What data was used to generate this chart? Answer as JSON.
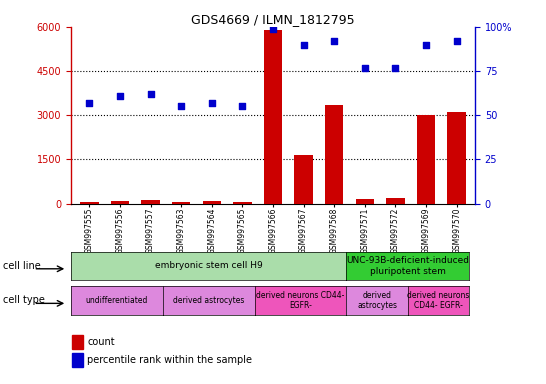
{
  "title": "GDS4669 / ILMN_1812795",
  "samples": [
    "GSM997555",
    "GSM997556",
    "GSM997557",
    "GSM997563",
    "GSM997564",
    "GSM997565",
    "GSM997566",
    "GSM997567",
    "GSM997568",
    "GSM997571",
    "GSM997572",
    "GSM997569",
    "GSM997570"
  ],
  "counts": [
    60,
    80,
    120,
    50,
    70,
    55,
    5900,
    1650,
    3350,
    150,
    200,
    3000,
    3100
  ],
  "percentiles": [
    57,
    61,
    62,
    55,
    57,
    55,
    99,
    90,
    92,
    77,
    77,
    90,
    92
  ],
  "bar_color": "#cc0000",
  "dot_color": "#0000cc",
  "ylim_left": [
    0,
    6000
  ],
  "ylim_right": [
    0,
    100
  ],
  "yticks_left": [
    0,
    1500,
    3000,
    4500,
    6000
  ],
  "yticks_right": [
    0,
    25,
    50,
    75,
    100
  ],
  "ytick_labels_right": [
    "0",
    "25",
    "50",
    "75",
    "100%"
  ],
  "grid_lines": [
    1500,
    3000,
    4500
  ],
  "cell_line_groups": [
    {
      "label": "embryonic stem cell H9",
      "start": 0,
      "end": 9,
      "color": "#aaddaa"
    },
    {
      "label": "UNC-93B-deficient-induced\npluripotent stem",
      "start": 9,
      "end": 13,
      "color": "#33cc33"
    }
  ],
  "cell_type_groups": [
    {
      "label": "undifferentiated",
      "start": 0,
      "end": 3,
      "color": "#dd88dd"
    },
    {
      "label": "derived astrocytes",
      "start": 3,
      "end": 6,
      "color": "#dd88dd"
    },
    {
      "label": "derived neurons CD44-\nEGFR-",
      "start": 6,
      "end": 9,
      "color": "#ee55bb"
    },
    {
      "label": "derived\nastrocytes",
      "start": 9,
      "end": 11,
      "color": "#dd88dd"
    },
    {
      "label": "derived neurons\nCD44- EGFR-",
      "start": 11,
      "end": 13,
      "color": "#ee55bb"
    }
  ],
  "legend_count_color": "#cc0000",
  "legend_dot_color": "#0000cc",
  "bg_color": "#ffffff"
}
